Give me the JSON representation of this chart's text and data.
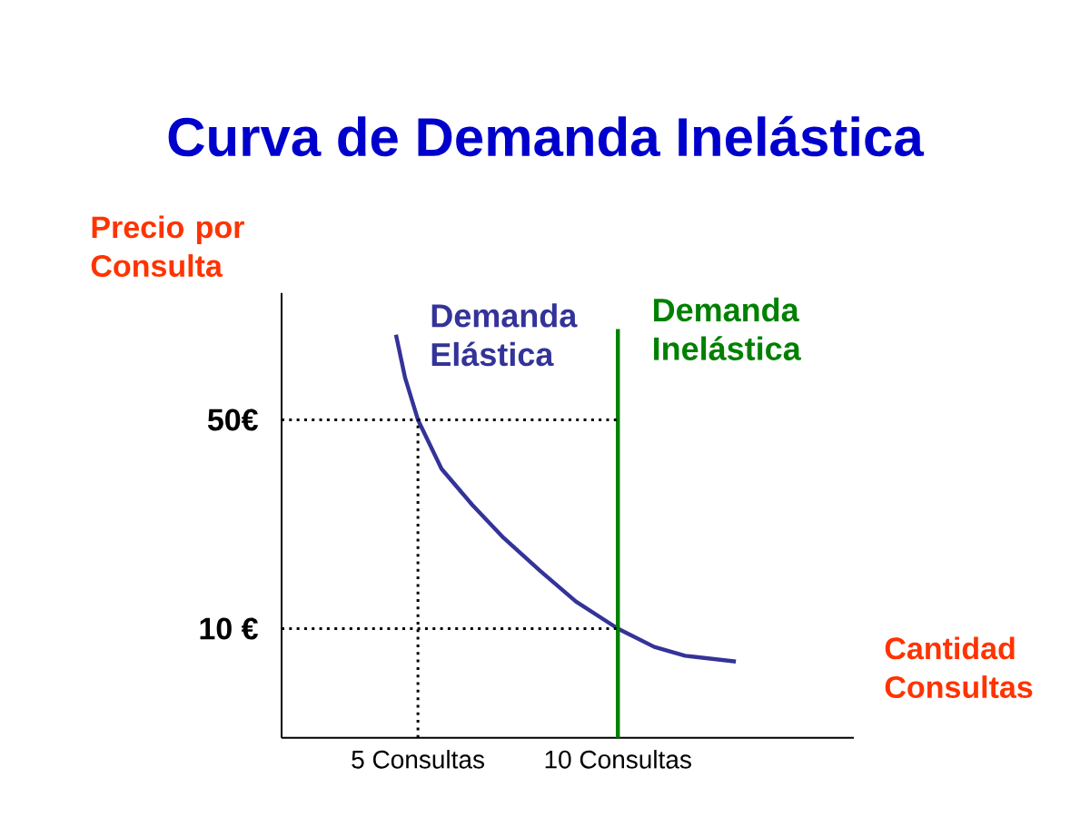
{
  "chart_data": {
    "type": "line",
    "title": "Curva de Demanda Inelástica",
    "ylabel": "Precio por Consulta",
    "xlabel": "Cantidad Consultas",
    "xlim": [
      1.59,
      15.9
    ],
    "ylim": [
      -10.9,
      74.3
    ],
    "xticks": [
      {
        "value": 5,
        "label": "5 Consultas"
      },
      {
        "value": 10,
        "label": "10 Consultas"
      }
    ],
    "yticks": [
      {
        "value": 50,
        "label": "50€"
      },
      {
        "value": 10,
        "label": "10 €"
      }
    ],
    "grid": false,
    "marker": "none",
    "series": [
      {
        "name": "Demanda Elástica",
        "color": "#333399",
        "line_style": "solid",
        "x": [
          4.45,
          4.68,
          5.0,
          5.59,
          6.36,
          7.14,
          8.05,
          8.95,
          10.0,
          10.91,
          11.68,
          12.95
        ],
        "values": [
          66.3,
          58.0,
          50,
          40.6,
          33.7,
          27.4,
          21.1,
          15.2,
          10,
          6.5,
          4.8,
          3.7
        ]
      },
      {
        "name": "Demanda Inelástica",
        "color": "#008000",
        "line_style": "solid",
        "x": [
          10,
          10
        ],
        "values": [
          -10.9,
          67.4
        ]
      },
      {
        "color": "#000000",
        "line_style": "dotted",
        "x": [
          1.59,
          10
        ],
        "values": [
          50,
          50
        ]
      },
      {
        "color": "#000000",
        "line_style": "dotted",
        "x": [
          1.59,
          10
        ],
        "values": [
          10,
          10
        ]
      },
      {
        "color": "#000000",
        "line_style": "dotted",
        "x": [
          5,
          5
        ],
        "values": [
          -10.9,
          50
        ]
      }
    ]
  }
}
